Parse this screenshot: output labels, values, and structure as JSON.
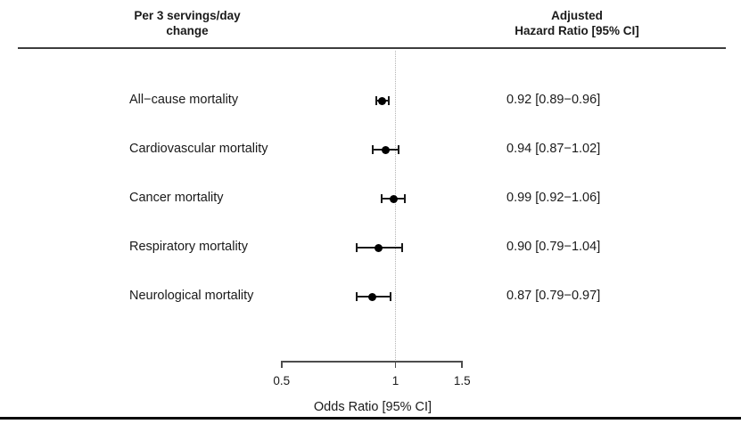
{
  "chart_data": {
    "type": "forest",
    "column_headers": {
      "left": [
        "Per 3 servings/day",
        "change"
      ],
      "right": [
        "Adjusted",
        "Hazard Ratio [95% CI]"
      ]
    },
    "categories": [
      "All−cause mortality",
      "Cardiovascular mortality",
      "Cancer mortality",
      "Respiratory mortality",
      "Neurological mortality"
    ],
    "estimates": [
      0.92,
      0.94,
      0.99,
      0.9,
      0.87
    ],
    "ci_low": [
      0.89,
      0.87,
      0.92,
      0.79,
      0.79
    ],
    "ci_high": [
      0.96,
      1.02,
      1.06,
      1.04,
      0.97
    ],
    "value_labels": [
      "0.92 [0.89−0.96]",
      "0.94 [0.87−1.02]",
      "0.99 [0.92−1.06]",
      "0.90 [0.79−1.04]",
      "0.87 [0.79−0.97]"
    ],
    "xlabel": "Odds Ratio [95% CI]",
    "x_ticks": [
      0.5,
      1,
      1.5
    ],
    "x_tick_labels": [
      "0.5",
      "1",
      "1.5"
    ],
    "x_scale": "log",
    "xlim": [
      0.5,
      1.5
    ],
    "reference_line": 1,
    "grid": "off",
    "legend": "none"
  },
  "colors": {
    "background": "#ffffff",
    "text": "#1a1a1a",
    "marker": "#000000",
    "error_bar": "#1a1a1a",
    "axis": "#4d4d4d",
    "reference_line": "#b3b3b3",
    "top_rule": "#3d3d3d",
    "bottom_rule": "#0a0a0a"
  }
}
